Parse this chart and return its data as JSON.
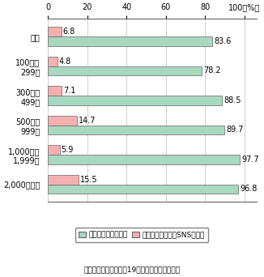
{
  "categories": [
    "全体",
    "100人～\n299人",
    "300人～\n499人",
    "500人～\n999人",
    "1,000人～\n1,999人",
    "2,000人以上"
  ],
  "homepage": [
    83.6,
    78.2,
    88.5,
    89.7,
    97.7,
    96.8
  ],
  "blog_sns": [
    6.8,
    4.8,
    7.1,
    14.7,
    5.9,
    15.5
  ],
  "homepage_color": "#a8d8c0",
  "blog_color": "#f4b0b0",
  "bar_edge_color": "#666666",
  "xlim": [
    0,
    106
  ],
  "xticks": [
    0,
    20,
    40,
    60,
    80,
    100
  ],
  "xtick_labels": [
    "0",
    "20",
    "40",
    "60",
    "80",
    "100（%）"
  ],
  "legend_homepage": "ホームページを開設",
  "legend_blog": "ビジネスブログ、SNSを開設",
  "footnote": "（出典）総務省「平成19年通信利用動向調査」",
  "bar_height": 0.32,
  "fontsize": 7,
  "label_fontsize": 7
}
